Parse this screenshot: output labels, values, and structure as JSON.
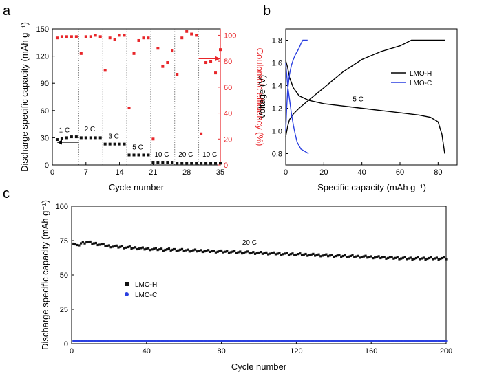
{
  "chart_data": [
    {
      "panel": "a",
      "type": "scatter",
      "xlabel": "Cycle number",
      "ylabel": "Discharge specific capacity (mAh g⁻¹)",
      "y2label": "Coulombic efficiency (%)",
      "xlim": [
        0,
        35
      ],
      "ylim": [
        0,
        150
      ],
      "y2lim": [
        0,
        105
      ],
      "xticks": [
        "0",
        "7",
        "14",
        "21",
        "28",
        "35"
      ],
      "yticks": [
        "0",
        "30",
        "60",
        "90",
        "120",
        "150"
      ],
      "y2ticks": [
        "0",
        "20",
        "40",
        "60",
        "80",
        "100"
      ],
      "axis_colors": {
        "left": "#000000",
        "right": "#e8262a"
      },
      "rate_dividers": [
        5.5,
        10.5,
        15.5,
        20.5,
        25.5,
        30.5
      ],
      "rate_labels": [
        {
          "text": "1 C",
          "x": 2.5,
          "y": 36
        },
        {
          "text": "2 C",
          "x": 7.8,
          "y": 37
        },
        {
          "text": "3 C",
          "x": 12.8,
          "y": 29
        },
        {
          "text": "5 C",
          "x": 17.8,
          "y": 17
        },
        {
          "text": "10 C",
          "x": 22.8,
          "y": 9
        },
        {
          "text": "20 C",
          "x": 27.8,
          "y": 9
        },
        {
          "text": "10 C",
          "x": 32.8,
          "y": 9
        }
      ],
      "series": [
        {
          "axis": "left",
          "color": "#111111",
          "marker": "square",
          "x": [
            1,
            2,
            3,
            4,
            5,
            6,
            7,
            8,
            9,
            10,
            11,
            12,
            13,
            14,
            15,
            16,
            17,
            18,
            19,
            20,
            21,
            22,
            23,
            24,
            25,
            26,
            27,
            28,
            29,
            30,
            31,
            32,
            33,
            34,
            35
          ],
          "values": [
            28,
            29,
            30,
            31,
            31,
            30,
            30,
            30,
            30,
            30,
            23,
            23,
            23,
            23,
            23,
            11,
            11,
            11,
            11,
            11,
            3,
            3,
            3,
            3,
            3,
            2,
            2,
            2,
            2,
            2,
            2,
            2,
            2,
            2,
            2
          ]
        },
        {
          "axis": "right",
          "color": "#e8262a",
          "marker": "square",
          "x": [
            1,
            2,
            3,
            4,
            5,
            6,
            7,
            8,
            9,
            10,
            11,
            12,
            13,
            14,
            15,
            16,
            17,
            18,
            19,
            20,
            21,
            22,
            23,
            24,
            25,
            26,
            27,
            28,
            29,
            30,
            31,
            32,
            33,
            34,
            35
          ],
          "values": [
            98,
            99,
            99,
            99,
            99,
            86,
            99,
            99,
            100,
            99,
            73,
            98,
            97,
            100,
            100,
            44,
            86,
            96,
            98,
            98,
            20,
            90,
            76,
            79,
            88,
            70,
            98,
            103,
            101,
            100,
            24,
            79,
            80,
            71,
            89
          ]
        }
      ],
      "arrows": [
        {
          "direction": "left",
          "x_from": 5.5,
          "x_to": 1,
          "y": 25
        },
        {
          "direction": "right",
          "x_from": 30.5,
          "x_to": 35,
          "y": 82
        }
      ]
    },
    {
      "panel": "b",
      "type": "line",
      "xlabel": "Specific capacity (mAh g⁻¹)",
      "ylabel": "Voltage (V)",
      "xlim": [
        0,
        90
      ],
      "ylim": [
        0.7,
        1.9
      ],
      "xticks": [
        "0",
        "20",
        "40",
        "60",
        "80"
      ],
      "yticks": [
        "0.8",
        "1.0",
        "1.2",
        "1.4",
        "1.6",
        "1.8"
      ],
      "annotation": {
        "text": "5 C",
        "x": 38,
        "y": 1.26
      },
      "legend": {
        "position": "right",
        "entries": [
          "LMO-H",
          "LMO-C"
        ]
      },
      "series": [
        {
          "name": "LMO-H",
          "color": "#000000",
          "discharge": {
            "x": [
              0,
              1,
              2,
              4,
              7,
              12,
              20,
              30,
              40,
              50,
              60,
              70,
              76,
              80,
              82,
              83.5
            ],
            "y": [
              1.62,
              1.56,
              1.47,
              1.38,
              1.31,
              1.27,
              1.24,
              1.22,
              1.2,
              1.18,
              1.16,
              1.14,
              1.12,
              1.08,
              0.97,
              0.8
            ]
          },
          "charge": {
            "x": [
              0,
              1,
              2,
              4,
              7,
              12,
              20,
              30,
              40,
              50,
              60,
              66,
              70,
              83.5
            ],
            "y": [
              0.95,
              1.04,
              1.1,
              1.15,
              1.2,
              1.27,
              1.38,
              1.52,
              1.63,
              1.7,
              1.75,
              1.8,
              1.8,
              1.8
            ]
          }
        },
        {
          "name": "LMO-C",
          "color": "#2a3fe0",
          "discharge": {
            "x": [
              0,
              0.5,
              1,
              2,
              3,
              4,
              5,
              6,
              8,
              10,
              12
            ],
            "y": [
              1.6,
              1.5,
              1.4,
              1.28,
              1.15,
              1.05,
              0.97,
              0.9,
              0.84,
              0.82,
              0.8
            ]
          },
          "charge": {
            "x": [
              0,
              0.5,
              1,
              2,
              3,
              4,
              5,
              6,
              7,
              8,
              9,
              11.5
            ],
            "y": [
              1.0,
              1.2,
              1.36,
              1.5,
              1.58,
              1.63,
              1.67,
              1.7,
              1.73,
              1.77,
              1.8,
              1.8
            ]
          }
        }
      ]
    },
    {
      "panel": "c",
      "type": "scatter",
      "xlabel": "Cycle number",
      "ylabel": "Discharge specific capacity (mAh g⁻¹)",
      "xlim": [
        0,
        200
      ],
      "ylim": [
        0,
        100
      ],
      "xticks": [
        "0",
        "40",
        "80",
        "120",
        "160",
        "200"
      ],
      "yticks": [
        "0",
        "25",
        "50",
        "75",
        "100"
      ],
      "annotation": {
        "text": "20 C",
        "x": 95,
        "y": 72
      },
      "legend": {
        "position": "left",
        "entries": [
          "LMO-H",
          "LMO-C"
        ]
      },
      "series": [
        {
          "name": "LMO-H",
          "color": "#111111",
          "marker": "square",
          "trend": {
            "x": [
              1,
              3,
              5,
              8,
              12,
              16,
              20,
              30,
              40,
              60,
              80,
              100,
              120,
              140,
              160,
              180,
              200
            ],
            "y": [
              73,
              71,
              73,
              74,
              73,
              72,
              71,
              70,
              69,
              68,
              67,
              66,
              65,
              64,
              63,
              62,
              62
            ]
          }
        },
        {
          "name": "LMO-C",
          "color": "#2a3fe0",
          "marker": "circle",
          "trend": {
            "x": [
              1,
              200
            ],
            "y": [
              2,
              2
            ]
          }
        }
      ]
    }
  ]
}
